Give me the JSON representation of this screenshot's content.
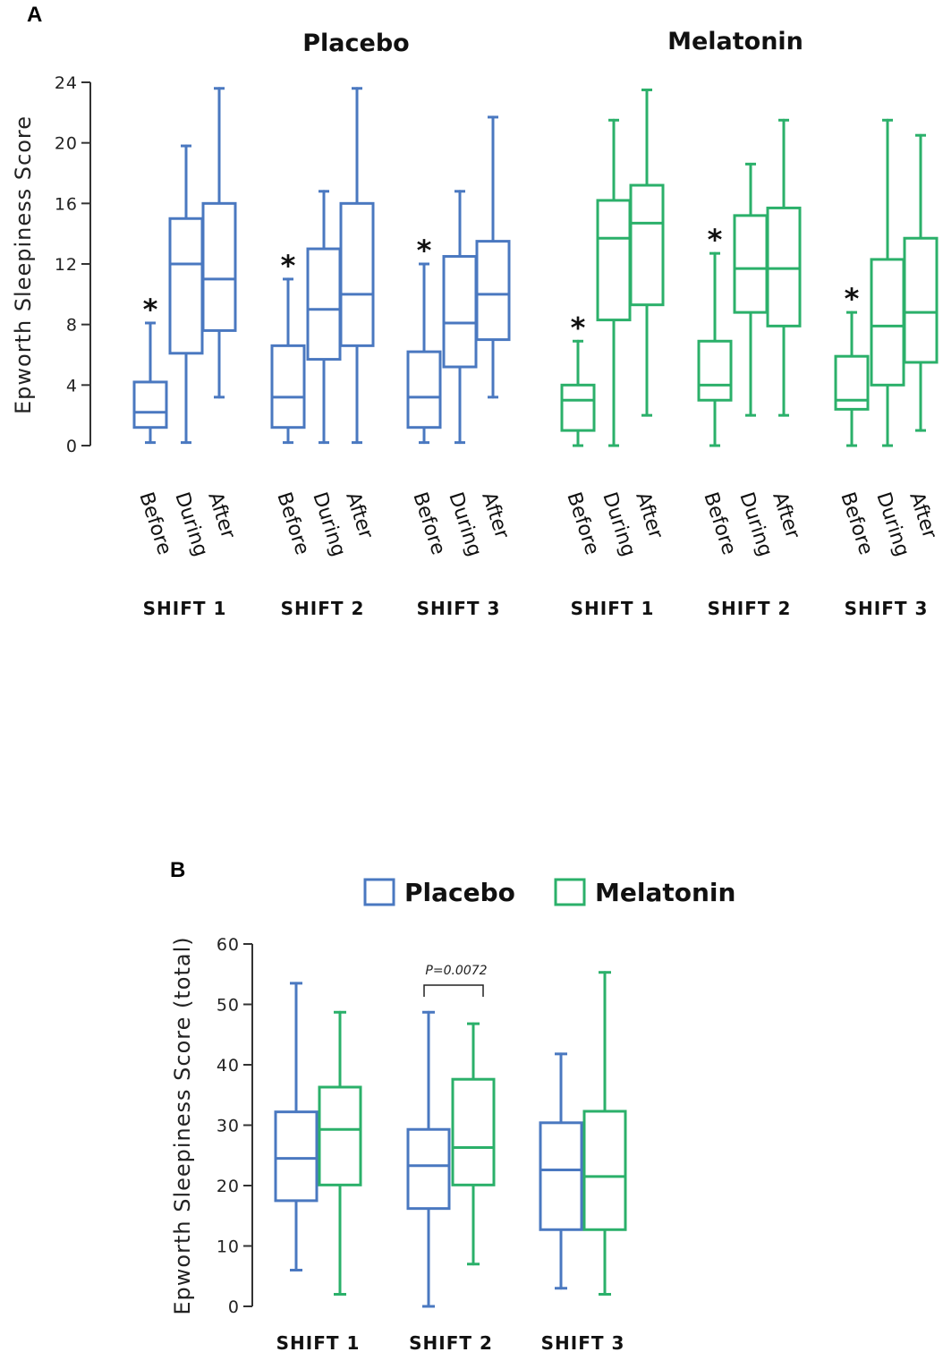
{
  "colors": {
    "placebo": "#4a78c0",
    "melatonin": "#2bb06a",
    "axis": "#333333"
  },
  "chart_data": [
    {
      "panel": "A",
      "type": "box",
      "title": "",
      "ylabel": "Epworth Sleepiness Score",
      "ylim": [
        0,
        24
      ],
      "yticks": [
        0,
        4,
        8,
        12,
        16,
        20,
        24
      ],
      "group_titles": [
        "Placebo",
        "Melatonin"
      ],
      "shift_labels": [
        "SHIFT 1",
        "SHIFT 2",
        "SHIFT 3"
      ],
      "categories": [
        "Before",
        "During",
        "After"
      ],
      "series": [
        {
          "name": "Placebo",
          "shifts": [
            {
              "shift": "SHIFT 1",
              "significance": "*",
              "boxes": [
                {
                  "label": "Before",
                  "min": 0.2,
                  "q1": 1.2,
                  "median": 2.2,
                  "q3": 4.2,
                  "max": 8.1
                },
                {
                  "label": "During",
                  "min": 0.2,
                  "q1": 6.1,
                  "median": 12.0,
                  "q3": 15.0,
                  "max": 19.8
                },
                {
                  "label": "After",
                  "min": 3.2,
                  "q1": 7.6,
                  "median": 11.0,
                  "q3": 16.0,
                  "max": 23.6
                }
              ]
            },
            {
              "shift": "SHIFT 2",
              "significance": "*",
              "boxes": [
                {
                  "label": "Before",
                  "min": 0.2,
                  "q1": 1.2,
                  "median": 3.2,
                  "q3": 6.6,
                  "max": 11.0
                },
                {
                  "label": "During",
                  "min": 0.2,
                  "q1": 5.7,
                  "median": 9.0,
                  "q3": 13.0,
                  "max": 16.8
                },
                {
                  "label": "After",
                  "min": 0.2,
                  "q1": 6.6,
                  "median": 10.0,
                  "q3": 16.0,
                  "max": 23.6
                }
              ]
            },
            {
              "shift": "SHIFT 3",
              "significance": "*",
              "boxes": [
                {
                  "label": "Before",
                  "min": 0.2,
                  "q1": 1.2,
                  "median": 3.2,
                  "q3": 6.2,
                  "max": 12.0
                },
                {
                  "label": "During",
                  "min": 0.2,
                  "q1": 5.2,
                  "median": 8.1,
                  "q3": 12.5,
                  "max": 16.8
                },
                {
                  "label": "After",
                  "min": 3.2,
                  "q1": 7.0,
                  "median": 10.0,
                  "q3": 13.5,
                  "max": 21.7
                }
              ]
            }
          ]
        },
        {
          "name": "Melatonin",
          "shifts": [
            {
              "shift": "SHIFT 1",
              "significance": "*",
              "boxes": [
                {
                  "label": "Before",
                  "min": 0.0,
                  "q1": 1.0,
                  "median": 3.0,
                  "q3": 4.0,
                  "max": 6.9
                },
                {
                  "label": "During",
                  "min": 0.0,
                  "q1": 8.3,
                  "median": 13.7,
                  "q3": 16.2,
                  "max": 21.5
                },
                {
                  "label": "After",
                  "min": 2.0,
                  "q1": 9.3,
                  "median": 14.7,
                  "q3": 17.2,
                  "max": 23.5
                }
              ]
            },
            {
              "shift": "SHIFT 2",
              "significance": "*",
              "boxes": [
                {
                  "label": "Before",
                  "min": 0.0,
                  "q1": 3.0,
                  "median": 4.0,
                  "q3": 6.9,
                  "max": 12.7
                },
                {
                  "label": "During",
                  "min": 2.0,
                  "q1": 8.8,
                  "median": 11.7,
                  "q3": 15.2,
                  "max": 18.6
                },
                {
                  "label": "After",
                  "min": 2.0,
                  "q1": 7.9,
                  "median": 11.7,
                  "q3": 15.7,
                  "max": 21.5
                }
              ]
            },
            {
              "shift": "SHIFT 3",
              "significance": "*",
              "boxes": [
                {
                  "label": "Before",
                  "min": 0.0,
                  "q1": 2.4,
                  "median": 3.0,
                  "q3": 5.9,
                  "max": 8.8
                },
                {
                  "label": "During",
                  "min": 0.0,
                  "q1": 4.0,
                  "median": 7.9,
                  "q3": 12.3,
                  "max": 21.5
                },
                {
                  "label": "After",
                  "min": 1.0,
                  "q1": 5.5,
                  "median": 8.8,
                  "q3": 13.7,
                  "max": 20.5
                }
              ]
            }
          ]
        }
      ]
    },
    {
      "panel": "B",
      "type": "box",
      "title": "",
      "ylabel": "Epworth Sleepiness Score (total)",
      "ylim": [
        0,
        60
      ],
      "yticks": [
        0,
        10,
        20,
        30,
        40,
        50,
        60
      ],
      "legend": [
        "Placebo",
        "Melatonin"
      ],
      "legend_position": "top",
      "categories": [
        "SHIFT 1",
        "SHIFT 2",
        "SHIFT 3"
      ],
      "annotation": {
        "text": "P=0.0072",
        "shift": "SHIFT 2"
      },
      "series": [
        {
          "name": "Placebo",
          "boxes": [
            {
              "shift": "SHIFT 1",
              "min": 6.0,
              "q1": 17.5,
              "median": 24.5,
              "q3": 32.2,
              "max": 53.5
            },
            {
              "shift": "SHIFT 2",
              "min": 0.0,
              "q1": 16.2,
              "median": 23.3,
              "q3": 29.3,
              "max": 48.7
            },
            {
              "shift": "SHIFT 3",
              "min": 3.0,
              "q1": 12.7,
              "median": 22.6,
              "q3": 30.4,
              "max": 41.8
            }
          ]
        },
        {
          "name": "Melatonin",
          "boxes": [
            {
              "shift": "SHIFT 1",
              "min": 2.0,
              "q1": 20.1,
              "median": 29.3,
              "q3": 36.3,
              "max": 48.7
            },
            {
              "shift": "SHIFT 2",
              "min": 7.0,
              "q1": 20.1,
              "median": 26.3,
              "q3": 37.6,
              "max": 46.8
            },
            {
              "shift": "SHIFT 3",
              "min": 2.0,
              "q1": 12.7,
              "median": 21.5,
              "q3": 32.3,
              "max": 55.3
            }
          ]
        }
      ]
    }
  ]
}
